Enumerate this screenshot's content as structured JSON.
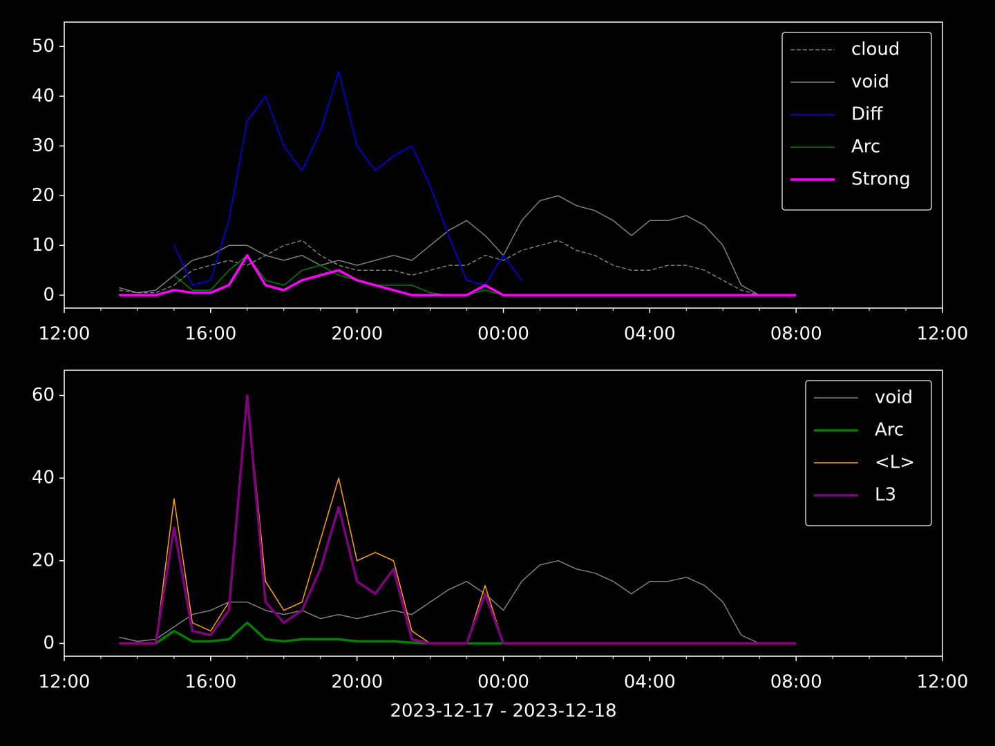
{
  "chart_data": [
    {
      "type": "line",
      "legend": "upper right",
      "x": [
        1.5,
        2,
        2.5,
        3,
        3.5,
        4,
        4.5,
        5,
        5.5,
        6,
        6.5,
        7,
        7.5,
        8,
        8.5,
        9,
        9.5,
        10,
        10.5,
        11,
        11.5,
        12,
        12.5,
        13,
        13.5,
        14,
        14.5,
        15,
        15.5,
        16,
        16.5,
        17,
        17.5,
        18,
        18.5,
        19,
        19.5,
        20
      ],
      "xlim": [
        0,
        24
      ],
      "xticks": [
        {
          "value": 0,
          "label": "12:00"
        },
        {
          "value": 4,
          "label": "16:00"
        },
        {
          "value": 8,
          "label": "20:00"
        },
        {
          "value": 12,
          "label": "00:00"
        },
        {
          "value": 16,
          "label": "04:00"
        },
        {
          "value": 20,
          "label": "08:00"
        },
        {
          "value": 24,
          "label": "12:00"
        }
      ],
      "ylim": [
        -2.6,
        54.9
      ],
      "yticks": [
        0,
        10,
        20,
        30,
        40,
        50
      ],
      "series": [
        {
          "name": "cloud",
          "color": "#808080",
          "linestyle": "dashed",
          "linewidth": 1.5,
          "values": [
            1,
            0.5,
            0.5,
            2,
            5,
            6,
            7,
            6,
            8,
            10,
            11,
            8,
            6,
            5,
            5,
            5,
            4,
            5,
            6,
            6,
            8,
            7,
            9,
            10,
            11,
            9,
            8,
            6,
            5,
            5,
            6,
            6,
            5,
            3,
            1,
            0,
            0,
            0
          ]
        },
        {
          "name": "void",
          "color": "#808080",
          "linestyle": "solid",
          "linewidth": 1.5,
          "values": [
            1.5,
            0.5,
            1,
            4,
            7,
            8,
            10,
            10,
            8,
            7,
            8,
            6,
            7,
            6,
            7,
            8,
            7,
            10,
            13,
            15,
            12,
            8,
            15,
            19,
            20,
            18,
            17,
            15,
            12,
            15,
            15,
            16,
            14,
            10,
            2,
            0,
            0,
            0
          ]
        },
        {
          "name": "Diff",
          "color": "#0000ff",
          "linestyle": "solid",
          "linewidth": 1.5,
          "values": [
            null,
            null,
            null,
            10,
            2,
            3,
            15,
            35,
            40,
            30,
            25,
            33,
            45,
            30,
            25,
            28,
            30,
            22,
            12,
            3,
            2,
            8,
            3,
            null,
            null,
            null,
            null,
            null,
            null,
            null,
            null,
            null,
            null,
            null,
            null,
            null,
            null,
            null
          ]
        },
        {
          "name": "Arc",
          "color": "#008000",
          "linestyle": "solid",
          "linewidth": 1.5,
          "values": [
            null,
            null,
            null,
            4,
            1,
            1,
            5,
            8,
            3,
            2,
            5,
            6,
            4,
            3,
            2,
            2,
            2,
            0.5,
            0,
            0,
            1,
            0,
            0,
            0,
            0,
            0,
            0,
            0,
            0,
            0,
            0,
            0,
            0,
            0,
            0,
            0,
            0,
            0
          ]
        },
        {
          "name": "Strong",
          "color": "#ff00ff",
          "linestyle": "solid",
          "linewidth": 3.5,
          "values": [
            0,
            0,
            0,
            1,
            0.5,
            0.5,
            2,
            8,
            2,
            1,
            3,
            4,
            5,
            3,
            2,
            1,
            0,
            0,
            0,
            0,
            2,
            0,
            0,
            0,
            0,
            0,
            0,
            0,
            0,
            0,
            0,
            0,
            0,
            0,
            0,
            0,
            0,
            0
          ]
        }
      ]
    },
    {
      "type": "line",
      "legend": "upper right",
      "xlabel": "2023-12-17 - 2023-12-18",
      "x": [
        1.5,
        2,
        2.5,
        3,
        3.5,
        4,
        4.5,
        5,
        5.5,
        6,
        6.5,
        7,
        7.5,
        8,
        8.5,
        9,
        9.5,
        10,
        10.5,
        11,
        11.5,
        12,
        12.5,
        13,
        13.5,
        14,
        14.5,
        15,
        15.5,
        16,
        16.5,
        17,
        17.5,
        18,
        18.5,
        19,
        19.5,
        20
      ],
      "xlim": [
        0,
        24
      ],
      "xticks": [
        {
          "value": 0,
          "label": "12:00"
        },
        {
          "value": 4,
          "label": "16:00"
        },
        {
          "value": 8,
          "label": "20:00"
        },
        {
          "value": 12,
          "label": "00:00"
        },
        {
          "value": 16,
          "label": "04:00"
        },
        {
          "value": 20,
          "label": "08:00"
        },
        {
          "value": 24,
          "label": "12:00"
        }
      ],
      "ylim": [
        -3.1,
        66.1
      ],
      "yticks": [
        0,
        20,
        40,
        60
      ],
      "series": [
        {
          "name": "void",
          "color": "#808080",
          "linestyle": "solid",
          "linewidth": 1.5,
          "values": [
            1.5,
            0.5,
            1,
            4,
            7,
            8,
            10,
            10,
            8,
            7,
            8,
            6,
            7,
            6,
            7,
            8,
            7,
            10,
            13,
            15,
            12,
            8,
            15,
            19,
            20,
            18,
            17,
            15,
            12,
            15,
            15,
            16,
            14,
            10,
            2,
            0,
            0,
            0
          ]
        },
        {
          "name": "Arc",
          "color": "#008000",
          "linestyle": "solid",
          "linewidth": 3.5,
          "values": [
            0,
            0,
            0,
            3,
            0.5,
            0.5,
            1,
            5,
            1,
            0.5,
            1,
            1,
            1,
            0.5,
            0.5,
            0.5,
            0.2,
            0,
            0,
            0,
            0,
            0,
            0,
            0,
            0,
            0,
            0,
            0,
            0,
            0,
            0,
            0,
            0,
            0,
            0,
            0,
            0,
            0
          ]
        },
        {
          "name": "<L>",
          "color": "#ffa500",
          "linestyle": "solid",
          "linewidth": 1.5,
          "values": [
            0,
            0,
            0,
            35,
            5,
            3,
            10,
            60,
            15,
            8,
            10,
            25,
            40,
            20,
            22,
            20,
            3,
            0,
            0,
            0,
            14,
            0,
            0,
            0,
            0,
            0,
            0,
            0,
            0,
            0,
            0,
            0,
            0,
            0,
            0,
            0,
            0,
            0
          ]
        },
        {
          "name": "L3",
          "color": "#800080",
          "linestyle": "solid",
          "linewidth": 3.5,
          "values": [
            0,
            0,
            0,
            28,
            3,
            2,
            8,
            60,
            10,
            5,
            8,
            18,
            33,
            15,
            12,
            18,
            1,
            0,
            0,
            0,
            12,
            0,
            0,
            0,
            0,
            0,
            0,
            0,
            0,
            0,
            0,
            0,
            0,
            0,
            0,
            0,
            0,
            0
          ]
        }
      ]
    }
  ]
}
